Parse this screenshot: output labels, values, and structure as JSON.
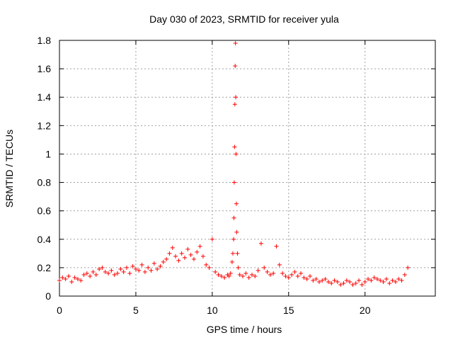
{
  "chart_data": {
    "type": "scatter",
    "title": "Day 030 of 2023, SRMTID for receiver yula",
    "xlabel": "GPS time / hours",
    "ylabel": "SRMTID / TECUs",
    "xlim": [
      0,
      24.6
    ],
    "ylim": [
      0,
      1.8
    ],
    "xticks": [
      0,
      5,
      10,
      15,
      20
    ],
    "xtick_labels": [
      "0",
      "5",
      "10",
      "15",
      "20"
    ],
    "yticks": [
      0,
      0.2,
      0.4,
      0.6,
      0.8,
      1.0,
      1.2,
      1.4,
      1.6,
      1.8
    ],
    "ytick_labels": [
      "0",
      "0.2",
      "0.4",
      "0.6",
      "0.8",
      "1",
      "1.2",
      "1.4",
      "1.6",
      "1.8"
    ],
    "grid": true,
    "marker": "plus",
    "color": "#ff0000",
    "series": [
      {
        "name": "SRMTID",
        "x": [
          0.0,
          0.2,
          0.4,
          0.6,
          0.8,
          1.0,
          1.2,
          1.4,
          1.6,
          1.8,
          2.0,
          2.2,
          2.4,
          2.6,
          2.8,
          3.0,
          3.2,
          3.4,
          3.6,
          3.8,
          4.0,
          4.2,
          4.4,
          4.6,
          4.8,
          5.0,
          5.2,
          5.4,
          5.6,
          5.8,
          6.0,
          6.2,
          6.4,
          6.6,
          6.8,
          7.0,
          7.2,
          7.4,
          7.6,
          7.8,
          8.0,
          8.2,
          8.4,
          8.6,
          8.8,
          9.0,
          9.2,
          9.4,
          9.6,
          9.8,
          10.0,
          10.2,
          10.4,
          10.6,
          10.8,
          11.0,
          11.1,
          11.2,
          11.3,
          11.35,
          11.4,
          11.42,
          11.44,
          11.46,
          11.48,
          11.5,
          11.52,
          11.54,
          11.56,
          11.58,
          11.6,
          11.65,
          11.7,
          11.8,
          12.0,
          12.2,
          12.4,
          12.6,
          12.8,
          13.0,
          13.2,
          13.4,
          13.6,
          13.8,
          14.0,
          14.2,
          14.4,
          14.6,
          14.8,
          15.0,
          15.2,
          15.4,
          15.6,
          15.8,
          16.0,
          16.2,
          16.4,
          16.6,
          16.8,
          17.0,
          17.2,
          17.4,
          17.6,
          17.8,
          18.0,
          18.2,
          18.4,
          18.6,
          18.8,
          19.0,
          19.2,
          19.4,
          19.6,
          19.8,
          20.0,
          20.2,
          20.4,
          20.6,
          20.8,
          21.0,
          21.2,
          21.4,
          21.6,
          21.8,
          22.0,
          22.2,
          22.4,
          22.6,
          22.8
        ],
        "y": [
          0.11,
          0.13,
          0.12,
          0.14,
          0.1,
          0.13,
          0.12,
          0.11,
          0.15,
          0.16,
          0.14,
          0.17,
          0.15,
          0.19,
          0.2,
          0.17,
          0.16,
          0.18,
          0.15,
          0.16,
          0.19,
          0.17,
          0.2,
          0.16,
          0.21,
          0.19,
          0.18,
          0.22,
          0.17,
          0.2,
          0.18,
          0.23,
          0.19,
          0.21,
          0.24,
          0.26,
          0.3,
          0.34,
          0.28,
          0.25,
          0.3,
          0.27,
          0.33,
          0.29,
          0.26,
          0.31,
          0.35,
          0.28,
          0.22,
          0.2,
          0.4,
          0.17,
          0.15,
          0.14,
          0.13,
          0.15,
          0.14,
          0.16,
          0.24,
          0.3,
          0.4,
          0.55,
          0.8,
          1.05,
          1.35,
          1.62,
          1.78,
          1.4,
          1.0,
          0.65,
          0.45,
          0.3,
          0.2,
          0.15,
          0.14,
          0.16,
          0.13,
          0.15,
          0.14,
          0.18,
          0.37,
          0.2,
          0.17,
          0.15,
          0.16,
          0.35,
          0.22,
          0.16,
          0.14,
          0.13,
          0.15,
          0.17,
          0.14,
          0.16,
          0.13,
          0.12,
          0.14,
          0.11,
          0.12,
          0.1,
          0.11,
          0.12,
          0.1,
          0.09,
          0.11,
          0.1,
          0.08,
          0.09,
          0.11,
          0.1,
          0.08,
          0.09,
          0.11,
          0.08,
          0.1,
          0.12,
          0.11,
          0.13,
          0.12,
          0.11,
          0.1,
          0.12,
          0.09,
          0.11,
          0.1,
          0.12,
          0.11,
          0.15,
          0.2
        ]
      }
    ]
  }
}
